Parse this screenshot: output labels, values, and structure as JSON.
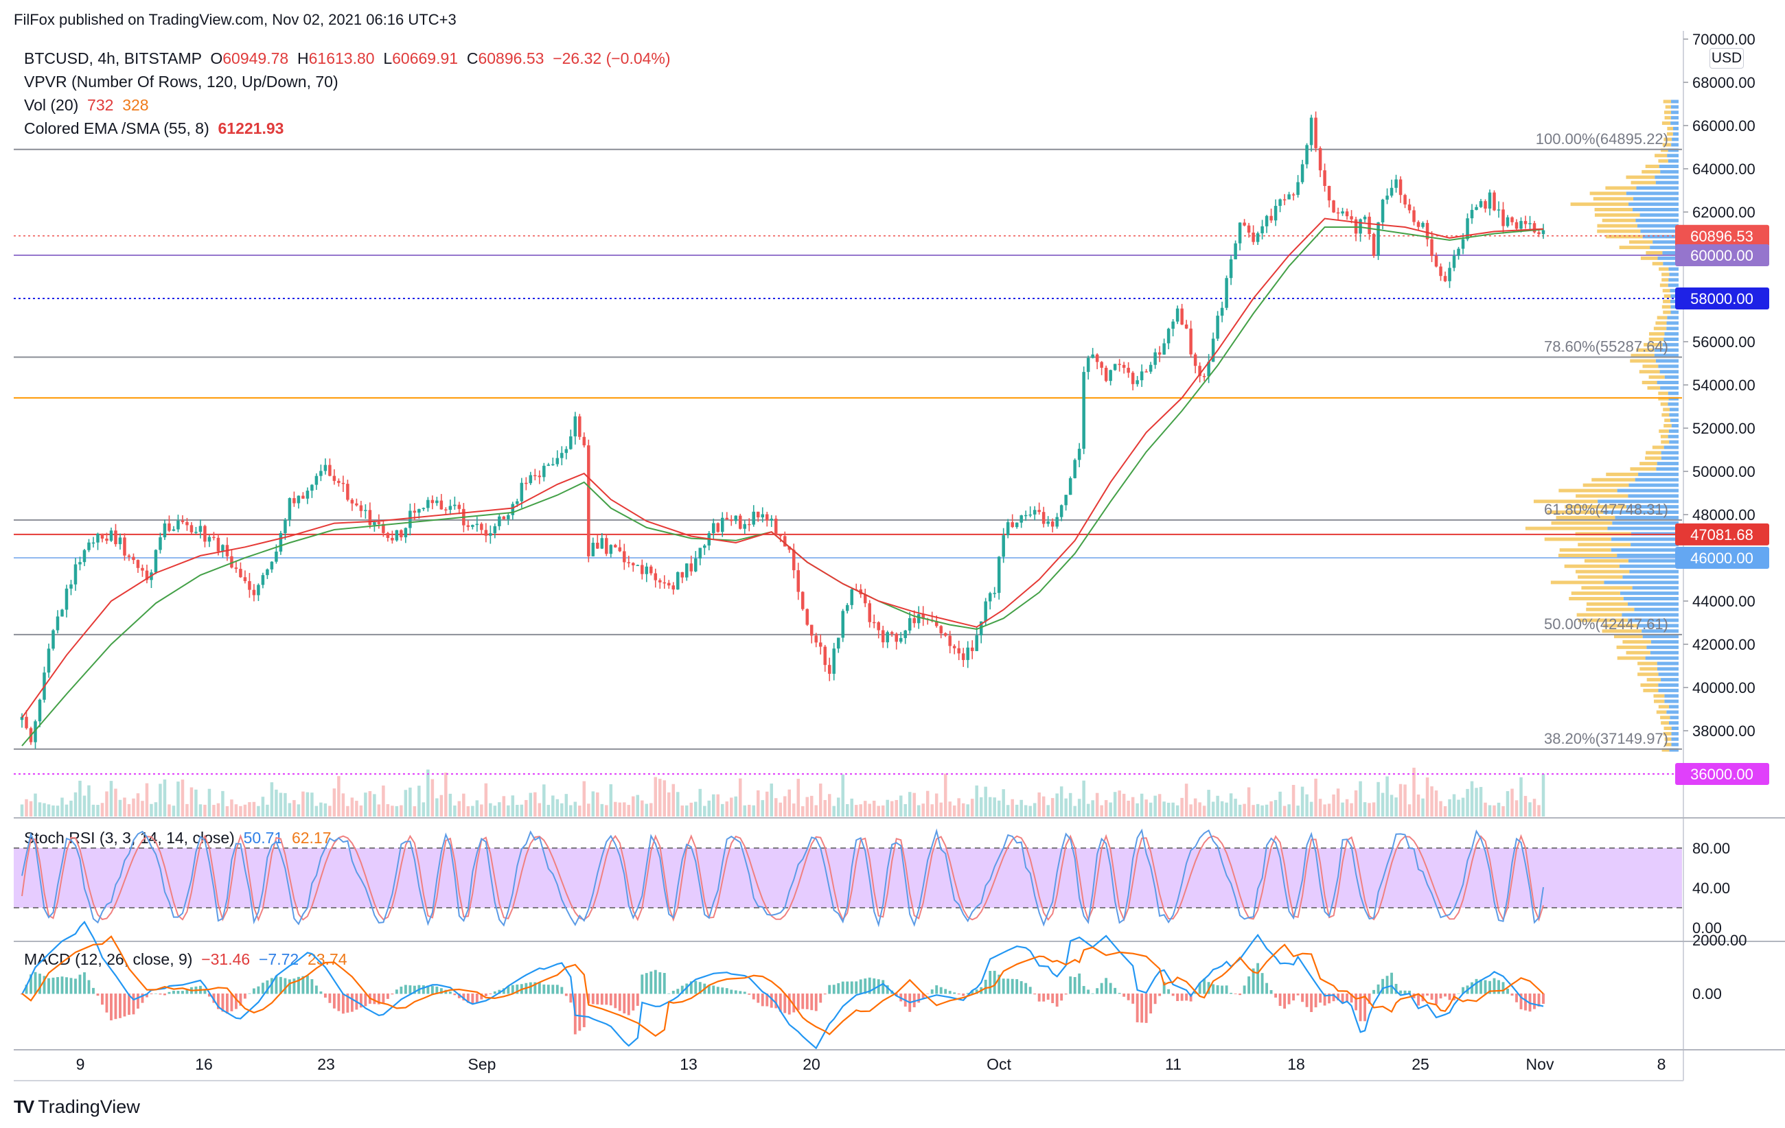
{
  "header": {
    "publisher": "FilFox published on TradingView.com, Nov 02, 2021 06:16 UTC+3"
  },
  "legend": {
    "symbol": "BTCUSD, 4h, BITSTAMP",
    "open_label": "O",
    "open": "60949.78",
    "high_label": "H",
    "high": "61613.80",
    "low_label": "L",
    "low": "60669.91",
    "close_label": "C",
    "close": "60896.53",
    "change": "−26.32 (−0.04%)",
    "vpvr": "VPVR (Number Of Rows, 120, Up/Down, 70)",
    "vol_label": "Vol (20)",
    "vol_a": "732",
    "vol_b": "328",
    "ema_label": "Colored EMA /SMA (55, 8)",
    "ema_value": "61221.93",
    "stoch_label": "Stoch RSI (3, 3, 14, 14, close)",
    "stoch_k": "50.71",
    "stoch_d": "62.17",
    "macd_label": "MACD (12, 26, close, 9)",
    "macd_hist": "−31.46",
    "macd_val": "−7.72",
    "macd_sig": "23.74"
  },
  "currency": "USD",
  "brand": {
    "logo": "TV",
    "name": "TradingView"
  },
  "colors": {
    "up": "#26a69a",
    "down": "#ef5350",
    "ema": "#e53935",
    "sma": "#43a047",
    "vpvr_up": "#5aa4ee",
    "vpvr_down": "#f2c14e",
    "stoch_bg": "#e6ccff",
    "macd_line": "#2196f3",
    "signal_line": "#ff6d00"
  },
  "chart_data": {
    "type": "candlestick",
    "interval": "4h",
    "y_range": [
      35000,
      71000
    ],
    "price_ticks": [
      "70000.00",
      "68000.00",
      "66000.00",
      "64000.00",
      "62000.00",
      "60000.00",
      "58000.00",
      "56000.00",
      "54000.00",
      "52000.00",
      "50000.00",
      "48000.00",
      "46000.00",
      "44000.00",
      "42000.00",
      "40000.00",
      "38000.00",
      "36000.00"
    ],
    "x_labels": [
      "9",
      "16",
      "23",
      "Sep",
      "13",
      "20",
      "Oct",
      "11",
      "18",
      "25",
      "Nov",
      "8"
    ],
    "price_path": [
      [
        0,
        38500
      ],
      [
        2,
        37300
      ],
      [
        4,
        39500
      ],
      [
        6,
        42000
      ],
      [
        9,
        43800
      ],
      [
        12,
        45500
      ],
      [
        16,
        46800
      ],
      [
        20,
        47000
      ],
      [
        24,
        46200
      ],
      [
        28,
        45000
      ],
      [
        32,
        47300
      ],
      [
        36,
        47800
      ],
      [
        40,
        47200
      ],
      [
        44,
        46600
      ],
      [
        48,
        45200
      ],
      [
        52,
        44300
      ],
      [
        56,
        45900
      ],
      [
        60,
        48600
      ],
      [
        64,
        49000
      ],
      [
        68,
        50000
      ],
      [
        72,
        49200
      ],
      [
        76,
        48300
      ],
      [
        80,
        47300
      ],
      [
        84,
        47000
      ],
      [
        88,
        48200
      ],
      [
        92,
        48600
      ],
      [
        96,
        48400
      ],
      [
        100,
        47600
      ],
      [
        104,
        46900
      ],
      [
        108,
        47900
      ],
      [
        112,
        49200
      ],
      [
        116,
        49900
      ],
      [
        120,
        50400
      ],
      [
        124,
        52300
      ],
      [
        126,
        51100
      ],
      [
        127,
        46300
      ],
      [
        130,
        46600
      ],
      [
        134,
        46200
      ],
      [
        138,
        45400
      ],
      [
        142,
        45100
      ],
      [
        146,
        44800
      ],
      [
        150,
        45600
      ],
      [
        154,
        47200
      ],
      [
        158,
        47700
      ],
      [
        162,
        47600
      ],
      [
        166,
        48100
      ],
      [
        170,
        47200
      ],
      [
        172,
        46300
      ],
      [
        175,
        43500
      ],
      [
        178,
        42000
      ],
      [
        181,
        40800
      ],
      [
        184,
        43400
      ],
      [
        187,
        44600
      ],
      [
        190,
        43300
      ],
      [
        193,
        42300
      ],
      [
        196,
        42100
      ],
      [
        199,
        43100
      ],
      [
        202,
        43400
      ],
      [
        205,
        42600
      ],
      [
        208,
        42100
      ],
      [
        211,
        41600
      ],
      [
        214,
        42200
      ],
      [
        216,
        43700
      ],
      [
        218,
        44600
      ],
      [
        220,
        47200
      ],
      [
        224,
        47700
      ],
      [
        228,
        48100
      ],
      [
        231,
        47400
      ],
      [
        234,
        48600
      ],
      [
        237,
        51200
      ],
      [
        238,
        54600
      ],
      [
        240,
        55300
      ],
      [
        243,
        54300
      ],
      [
        246,
        55100
      ],
      [
        249,
        54200
      ],
      [
        252,
        54900
      ],
      [
        255,
        55400
      ],
      [
        257,
        56800
      ],
      [
        259,
        57700
      ],
      [
        261,
        56300
      ],
      [
        263,
        55200
      ],
      [
        265,
        54100
      ],
      [
        267,
        56300
      ],
      [
        269,
        57700
      ],
      [
        271,
        59500
      ],
      [
        273,
        61500
      ],
      [
        276,
        60900
      ],
      [
        279,
        61700
      ],
      [
        282,
        62300
      ],
      [
        285,
        62600
      ],
      [
        287,
        64500
      ],
      [
        289,
        66200
      ],
      [
        291,
        64000
      ],
      [
        293,
        62800
      ],
      [
        295,
        61600
      ],
      [
        297,
        62100
      ],
      [
        299,
        61200
      ],
      [
        301,
        61900
      ],
      [
        303,
        60200
      ],
      [
        305,
        62300
      ],
      [
        308,
        63500
      ],
      [
        311,
        62200
      ],
      [
        314,
        61200
      ],
      [
        316,
        59900
      ],
      [
        318,
        58700
      ],
      [
        320,
        59100
      ],
      [
        322,
        60300
      ],
      [
        324,
        61600
      ],
      [
        326,
        62200
      ],
      [
        329,
        62600
      ],
      [
        332,
        61700
      ],
      [
        335,
        61400
      ],
      [
        338,
        61200
      ],
      [
        341,
        60900
      ]
    ],
    "ema_path": [
      [
        0,
        38600
      ],
      [
        10,
        41500
      ],
      [
        20,
        44000
      ],
      [
        30,
        45300
      ],
      [
        40,
        46100
      ],
      [
        50,
        46500
      ],
      [
        60,
        47000
      ],
      [
        70,
        47600
      ],
      [
        80,
        47700
      ],
      [
        90,
        47900
      ],
      [
        100,
        48100
      ],
      [
        110,
        48300
      ],
      [
        120,
        49400
      ],
      [
        126,
        49900
      ],
      [
        132,
        48700
      ],
      [
        140,
        47700
      ],
      [
        150,
        47000
      ],
      [
        160,
        46700
      ],
      [
        168,
        47200
      ],
      [
        176,
        45800
      ],
      [
        184,
        44800
      ],
      [
        192,
        44000
      ],
      [
        200,
        43500
      ],
      [
        208,
        43100
      ],
      [
        214,
        42800
      ],
      [
        220,
        43600
      ],
      [
        228,
        45000
      ],
      [
        236,
        46800
      ],
      [
        244,
        49500
      ],
      [
        252,
        51800
      ],
      [
        260,
        53400
      ],
      [
        268,
        55600
      ],
      [
        276,
        58000
      ],
      [
        284,
        60000
      ],
      [
        292,
        61700
      ],
      [
        300,
        61500
      ],
      [
        310,
        61300
      ],
      [
        320,
        60800
      ],
      [
        330,
        61100
      ],
      [
        341,
        61220
      ]
    ],
    "sma_path": [
      [
        0,
        37300
      ],
      [
        10,
        39700
      ],
      [
        20,
        42000
      ],
      [
        30,
        43900
      ],
      [
        40,
        45200
      ],
      [
        50,
        46000
      ],
      [
        60,
        46700
      ],
      [
        70,
        47300
      ],
      [
        80,
        47500
      ],
      [
        90,
        47700
      ],
      [
        100,
        47900
      ],
      [
        110,
        48100
      ],
      [
        120,
        48900
      ],
      [
        126,
        49500
      ],
      [
        132,
        48300
      ],
      [
        140,
        47400
      ],
      [
        150,
        46900
      ],
      [
        160,
        46800
      ],
      [
        168,
        47200
      ],
      [
        176,
        45800
      ],
      [
        184,
        44800
      ],
      [
        192,
        44000
      ],
      [
        200,
        43300
      ],
      [
        208,
        42900
      ],
      [
        214,
        42700
      ],
      [
        220,
        43200
      ],
      [
        228,
        44400
      ],
      [
        236,
        46200
      ],
      [
        244,
        48600
      ],
      [
        252,
        50900
      ],
      [
        260,
        52800
      ],
      [
        268,
        54900
      ],
      [
        276,
        57300
      ],
      [
        284,
        59500
      ],
      [
        292,
        61300
      ],
      [
        300,
        61300
      ],
      [
        310,
        61000
      ],
      [
        320,
        60700
      ],
      [
        330,
        61000
      ],
      [
        341,
        61200
      ]
    ],
    "horizontal_levels": [
      {
        "price": 64895.22,
        "label": "100.00%(64895.22)",
        "kind": "fib"
      },
      {
        "price": 60896.53,
        "kind": "last_price"
      },
      {
        "price": 60000,
        "kind": "line"
      },
      {
        "price": 58000,
        "kind": "dotted"
      },
      {
        "price": 55287.64,
        "label": "78.60%(55287.64)",
        "kind": "fib"
      },
      {
        "price": 53400,
        "kind": "orange"
      },
      {
        "price": 47748.31,
        "label": "61.80%(47748.31)",
        "kind": "fib"
      },
      {
        "price": 47081.68,
        "kind": "red"
      },
      {
        "price": 46000,
        "kind": "blue"
      },
      {
        "price": 42447.61,
        "label": "50.00%(42447.61)",
        "kind": "fib"
      },
      {
        "price": 37149.97,
        "label": "38.20%(37149.97)",
        "kind": "fib"
      },
      {
        "price": 36000,
        "kind": "magenta"
      }
    ],
    "price_tags": [
      {
        "text": "60896.53",
        "price": 60896.53,
        "color": "#ef5350"
      },
      {
        "text": "60000.00",
        "price": 60000,
        "color": "#9575cd"
      },
      {
        "text": "58000.00",
        "price": 58000,
        "color": "#1e22e6"
      },
      {
        "text": "47081.68",
        "price": 47081.68,
        "color": "#e53935"
      },
      {
        "text": "46000.00",
        "price": 46000,
        "color": "#64a7f2"
      },
      {
        "text": "36000.00",
        "price": 36000,
        "color": "#e040fb"
      }
    ],
    "stoch": {
      "ticks": [
        "80.00",
        "40.00",
        "0.00"
      ],
      "upper_band": 80,
      "lower_band": 20
    },
    "macd": {
      "ticks": [
        "2000.00",
        "0.00"
      ]
    }
  }
}
